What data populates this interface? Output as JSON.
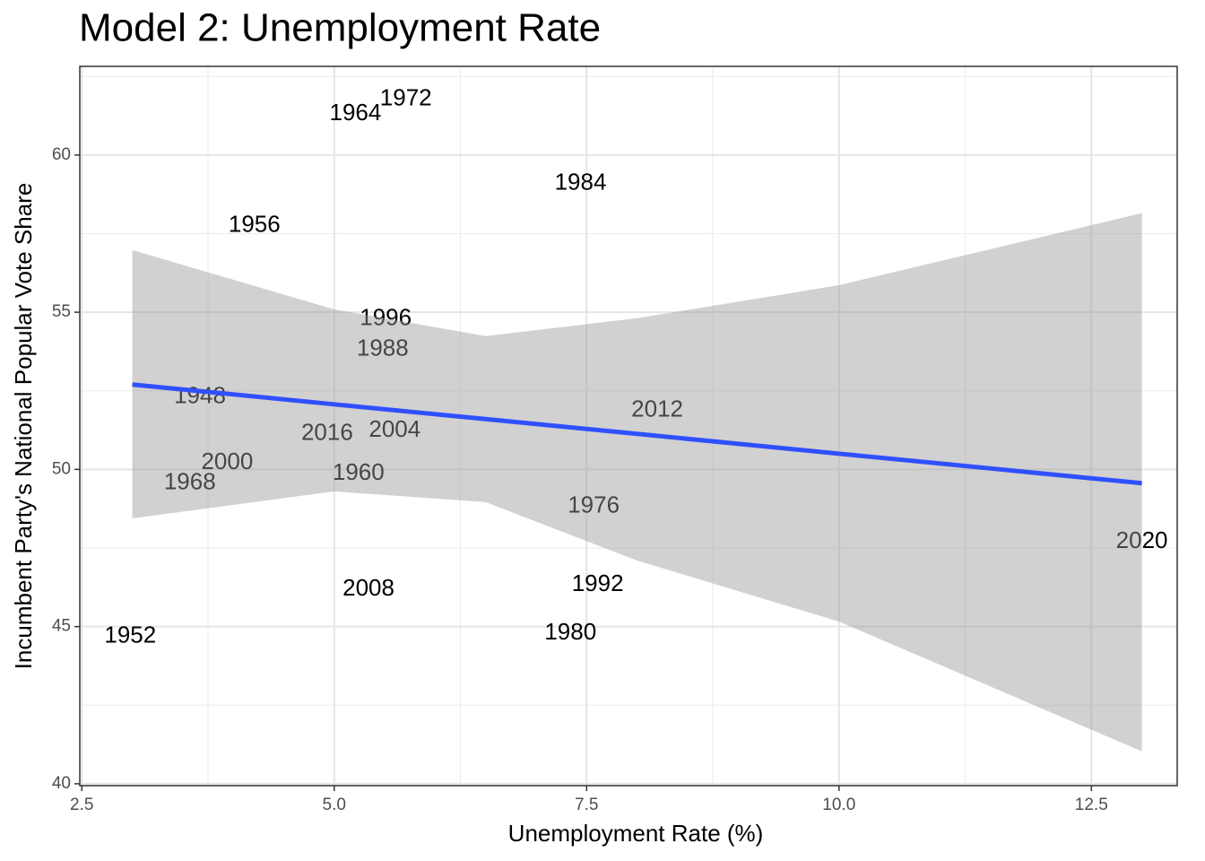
{
  "chart_data": {
    "type": "scatter",
    "title": "Model 2: Unemployment Rate",
    "x_label": "Unemployment Rate (%)",
    "y_label": "Incumbent Party's National Popular Vote Share",
    "labels": [
      "1964",
      "1972",
      "1984",
      "1956",
      "1996",
      "1988",
      "1948",
      "2012",
      "2016",
      "2004",
      "2000",
      "1960",
      "1968",
      "1976",
      "2020",
      "2008",
      "1992",
      "1952",
      "1980"
    ],
    "x": [
      5.21,
      5.71,
      7.44,
      4.21,
      5.51,
      5.48,
      3.67,
      8.2,
      4.93,
      5.6,
      3.94,
      5.24,
      3.57,
      7.57,
      13.0,
      5.34,
      7.61,
      2.98,
      7.34
    ],
    "values": [
      61.31,
      61.77,
      59.09,
      57.75,
      54.78,
      53.81,
      52.3,
      51.87,
      51.13,
      51.24,
      50.21,
      49.87,
      49.56,
      48.82,
      47.7,
      46.19,
      46.33,
      44.68,
      44.79
    ],
    "fit": {
      "color": "#3050ff",
      "x": [
        3,
        5,
        6.5,
        8,
        10,
        13
      ],
      "y": [
        52.7,
        52.07,
        51.6,
        51.13,
        50.5,
        49.56
      ]
    },
    "confidence_band": {
      "color": "#999999",
      "x": [
        3,
        5,
        6.5,
        8,
        10,
        13
      ],
      "upper": [
        56.98,
        55.09,
        54.24,
        54.81,
        55.86,
        58.15
      ],
      "lower": [
        48.44,
        49.3,
        48.96,
        47.1,
        45.16,
        41.03
      ]
    },
    "xlim": [
      2.48,
      13.35
    ],
    "ylim": [
      39.94,
      62.82
    ],
    "xticks": [
      2.5,
      {
        "value": 5,
        "label": "5.0"
      },
      7.5,
      {
        "value": 10,
        "label": "10.0"
      },
      12.5
    ],
    "yticks": [
      40,
      45,
      50,
      55,
      60
    ],
    "x_minor_grid": [
      3.75,
      6.25,
      8.75,
      11.25
    ],
    "y_minor_grid": [
      42.5,
      47.5,
      52.5,
      57.5,
      62.5
    ],
    "grid": true
  }
}
